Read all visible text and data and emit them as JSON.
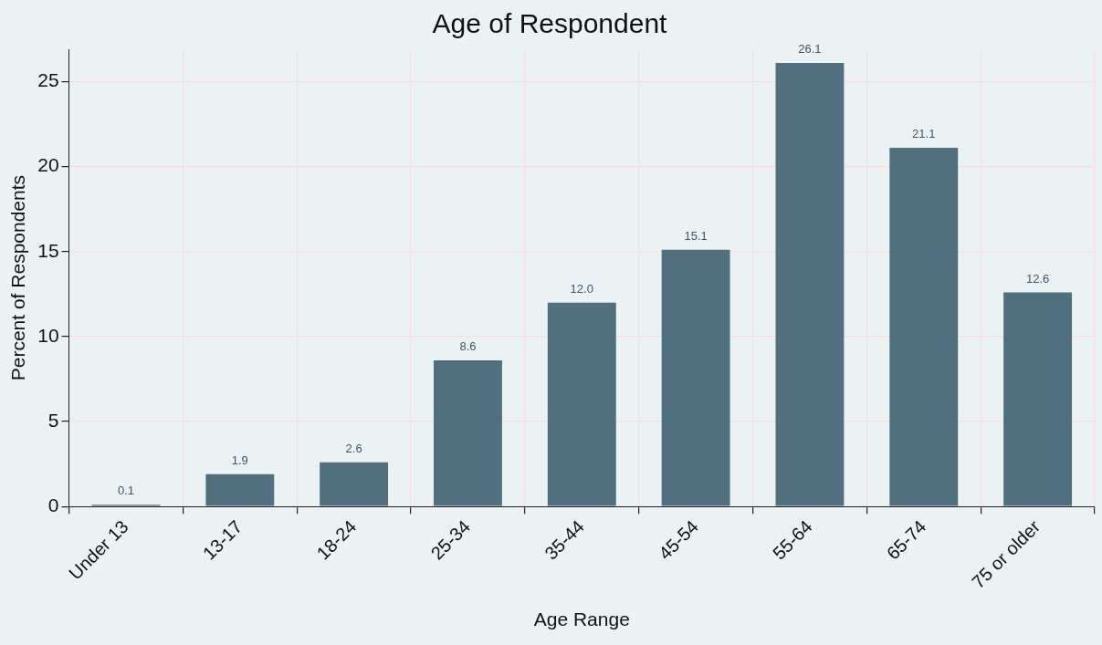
{
  "chart_data": {
    "type": "bar",
    "title": "Age of Respondent",
    "xlabel": "Age Range",
    "ylabel": "Percent of Respondents",
    "categories": [
      "Under 13",
      "13-17",
      "18-24",
      "25-34",
      "35-44",
      "45-54",
      "55-64",
      "65-74",
      "75 or older"
    ],
    "values": [
      0.1,
      1.9,
      2.6,
      8.6,
      12.0,
      15.1,
      26.1,
      21.1,
      12.6
    ],
    "value_labels": [
      "0.1",
      "1.9",
      "2.6",
      "8.6",
      "12.0",
      "15.1",
      "26.1",
      "21.1",
      "12.6"
    ],
    "color": "#51707f",
    "ylim": [
      0,
      26.9
    ],
    "yticks": [
      0,
      5,
      10,
      15,
      20,
      25
    ],
    "grid": true,
    "legend": false
  }
}
